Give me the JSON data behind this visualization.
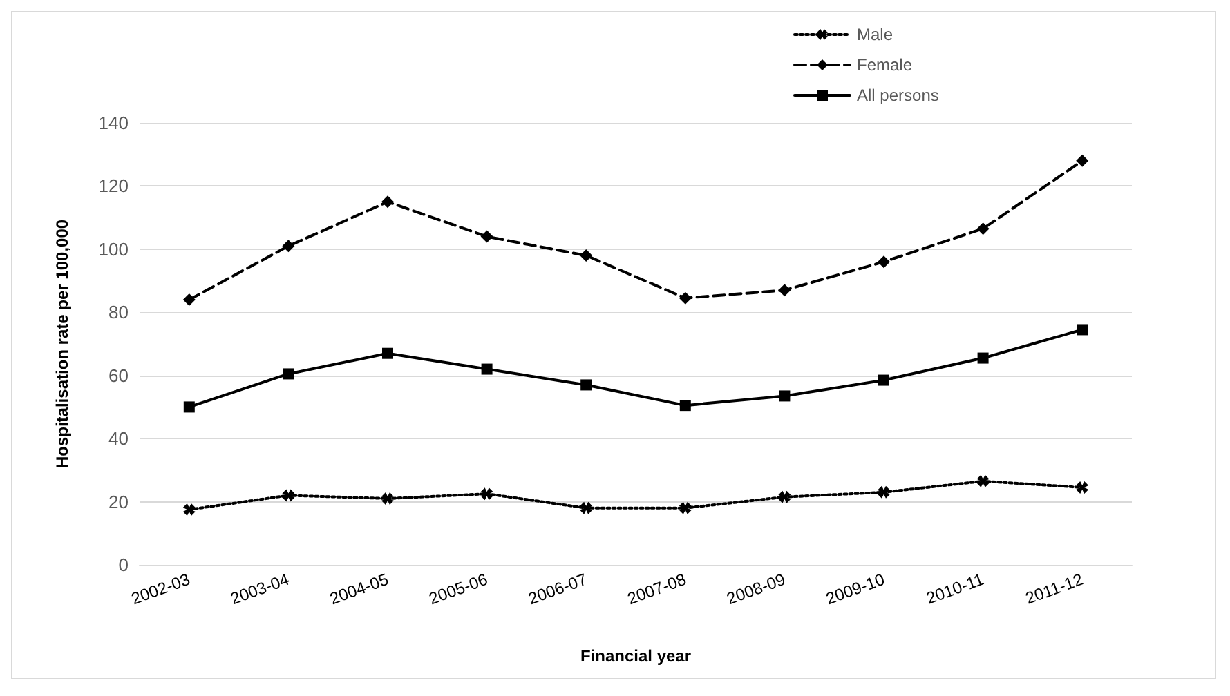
{
  "chart_data": {
    "type": "line",
    "xlabel": "Financial year",
    "ylabel": "Hospitalisation rate per 100,000",
    "categories": [
      "2002-03",
      "2003-04",
      "2004-05",
      "2005-06",
      "2006-07",
      "2007-08",
      "2008-09",
      "2009-10",
      "2010-11",
      "2011-12"
    ],
    "series": [
      {
        "name": "Male",
        "color": "#000000",
        "line_style": "dotted",
        "marker": "cross",
        "values": [
          17.5,
          22,
          21,
          22.5,
          18,
          18,
          21.5,
          23,
          26.5,
          24.5
        ]
      },
      {
        "name": "Female",
        "color": "#000000",
        "line_style": "dashed",
        "marker": "diamond",
        "values": [
          84,
          101,
          115,
          104,
          98,
          84.5,
          87,
          96,
          106.5,
          128
        ]
      },
      {
        "name": "All persons",
        "color": "#000000",
        "line_style": "solid",
        "marker": "square",
        "values": [
          50,
          60.5,
          67,
          62,
          57,
          50.5,
          53.5,
          58.5,
          65.5,
          74.5
        ]
      }
    ],
    "ylim": [
      0,
      140
    ],
    "yticks": [
      0,
      20,
      40,
      60,
      80,
      100,
      120,
      140
    ],
    "grid": "y",
    "legend": "top right"
  }
}
